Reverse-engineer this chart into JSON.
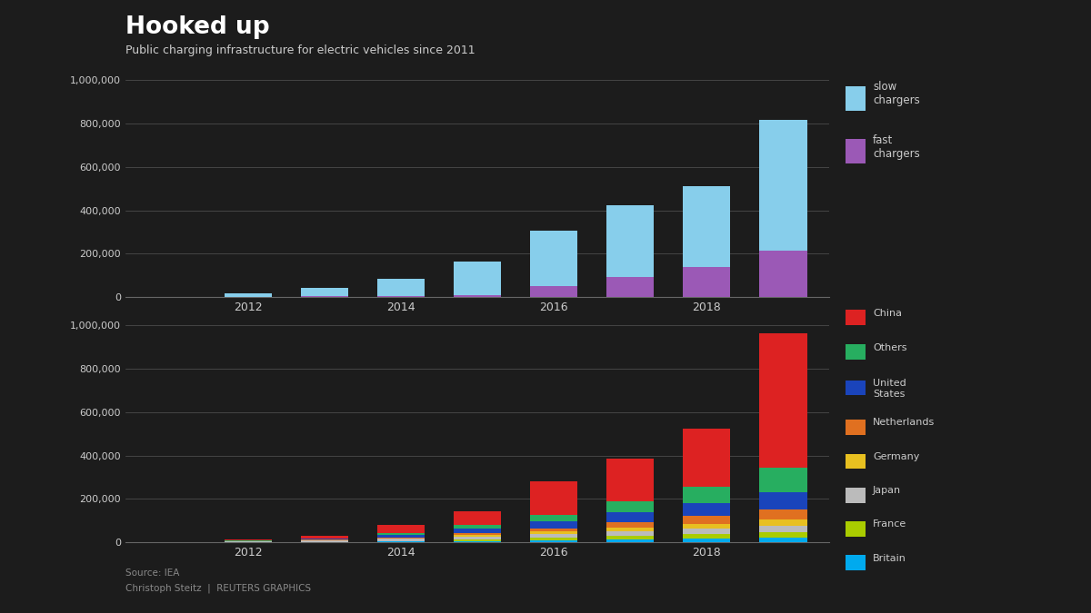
{
  "background_color": "#1c1c1c",
  "text_color": "#cccccc",
  "title": "Hooked up",
  "subtitle": "Public charging infrastructure for electric vehicles since 2011",
  "source": "Source: IEA",
  "author": "Christoph Steitz  |  REUTERS GRAPHICS",
  "years": [
    2011,
    2012,
    2013,
    2014,
    2015,
    2016,
    2017,
    2018,
    2019
  ],
  "slow_chargers": [
    3000,
    18000,
    40000,
    80000,
    155000,
    255000,
    330000,
    370000,
    600000
  ],
  "fast_chargers": [
    500,
    2000,
    4000,
    7000,
    10000,
    50000,
    95000,
    140000,
    215000
  ],
  "slow_color": "#87CEEB",
  "fast_color": "#9B59B6",
  "china": [
    500,
    5000,
    12000,
    35000,
    65000,
    155000,
    195000,
    265000,
    620000
  ],
  "others": [
    300,
    1200,
    3500,
    9000,
    16000,
    30000,
    50000,
    75000,
    110000
  ],
  "united_states": [
    400,
    2000,
    4500,
    11000,
    20000,
    30000,
    48000,
    60000,
    80000
  ],
  "netherlands": [
    150,
    700,
    1800,
    4500,
    9000,
    16000,
    25000,
    35000,
    45000
  ],
  "germany": [
    150,
    600,
    1300,
    3000,
    6000,
    10000,
    15000,
    22000,
    30000
  ],
  "japan": [
    1500,
    3000,
    5500,
    9000,
    15000,
    19000,
    23000,
    26000,
    29000
  ],
  "france": [
    150,
    500,
    1300,
    3000,
    6000,
    9500,
    14000,
    19000,
    24000
  ],
  "britain": [
    400,
    900,
    2200,
    4500,
    7000,
    11500,
    16000,
    20000,
    24000
  ],
  "china_color": "#dd2222",
  "others_color": "#27ae60",
  "united_states_color": "#1a44bb",
  "netherlands_color": "#e07020",
  "germany_color": "#e8c020",
  "japan_color": "#bbbbbb",
  "france_color": "#aacc00",
  "britain_color": "#00aaee",
  "yticks": [
    0,
    200000,
    400000,
    600000,
    800000,
    1000000
  ],
  "ytick_labels": [
    "0",
    "200,000",
    "400,000",
    "600,000",
    "800,000",
    "1,000,000"
  ],
  "show_years": [
    2012,
    2014,
    2016,
    2018
  ]
}
